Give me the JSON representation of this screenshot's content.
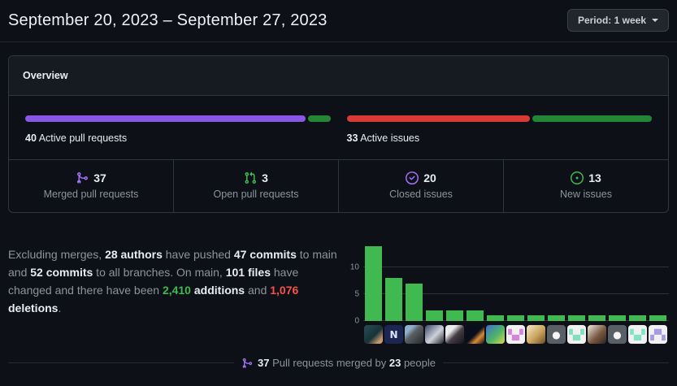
{
  "page": {
    "title": "September 20, 2023 – September 27, 2023",
    "period_button_label": "Period: 1 week"
  },
  "colors": {
    "background": "#0d1117",
    "card_border": "#30363d",
    "merged_purple": "#8957e5",
    "progress_green": "#238636",
    "closed_red": "#d93a35",
    "icon_purple": "#a371f7",
    "icon_green": "#3fb950",
    "additions_green": "#3fb950",
    "deletions_red": "#f85149",
    "chart_bar_green": "#3fb950"
  },
  "overview": {
    "tab_label": "Overview",
    "pull_requests": {
      "label_count": "40",
      "label_text": " Active pull requests",
      "merged_pct": 92.5,
      "open_pct": 7.5,
      "merged_color": "#8957e5",
      "open_color": "#238636"
    },
    "issues": {
      "label_count": "33",
      "label_text": " Active issues",
      "closed_pct": 60.5,
      "new_pct": 39.5,
      "closed_color": "#d93a35",
      "new_color": "#238636"
    },
    "stats": [
      {
        "icon": "git-merge-icon",
        "value": "37",
        "label": "Merged pull requests"
      },
      {
        "icon": "git-pull-request-icon",
        "value": "3",
        "label": "Open pull requests"
      },
      {
        "icon": "issue-closed-icon",
        "value": "20",
        "label": "Closed issues"
      },
      {
        "icon": "issue-opened-icon",
        "value": "13",
        "label": "New issues"
      }
    ]
  },
  "summary": {
    "segments": [
      {
        "text": "Excluding merges, ",
        "style": "normal"
      },
      {
        "text": "28 authors",
        "style": "bold"
      },
      {
        "text": " have pushed ",
        "style": "normal"
      },
      {
        "text": "47 commits",
        "style": "bold"
      },
      {
        "text": " to main and ",
        "style": "normal"
      },
      {
        "text": "52 commits",
        "style": "bold"
      },
      {
        "text": " to all branches. On main, ",
        "style": "normal"
      },
      {
        "text": "101 files",
        "style": "bold"
      },
      {
        "text": " have changed and there have been ",
        "style": "normal"
      },
      {
        "text": "2,410",
        "style": "green"
      },
      {
        "text": " additions",
        "style": "bold"
      },
      {
        "text": " and ",
        "style": "normal"
      },
      {
        "text": "1,076",
        "style": "red"
      },
      {
        "text": " deletions",
        "style": "bold"
      },
      {
        "text": ".",
        "style": "normal"
      }
    ]
  },
  "chart_data": {
    "type": "bar",
    "title": "Commits per contributor (top 15, one bar per avatar)",
    "values": [
      14,
      8,
      7,
      2,
      2,
      2,
      1,
      1,
      1,
      1,
      1,
      1,
      1,
      1,
      1
    ],
    "yticks": [
      0,
      5,
      10
    ],
    "ylim": [
      0,
      15
    ],
    "bar_color": "#3fb950",
    "grid": true,
    "xlabel": "",
    "ylabel": ""
  },
  "avatars": [
    {
      "kind": "photo",
      "bg": "linear-gradient(135deg,#2b4d52,#16323a 55%,#c99a6e 85%)",
      "fg": "",
      "glyph": ""
    },
    {
      "kind": "letter",
      "bg": "#1d2553",
      "fg": "#dbe3ff",
      "glyph": "N"
    },
    {
      "kind": "photo",
      "bg": "linear-gradient(135deg,#8fb0cc 25%,#5a5f63 45%,#26282b)",
      "fg": "",
      "glyph": ""
    },
    {
      "kind": "photo",
      "bg": "linear-gradient(135deg,#3a4a66,#cfd0da 55%,#23242b)",
      "fg": "",
      "glyph": ""
    },
    {
      "kind": "photo",
      "bg": "linear-gradient(135deg,#ececec 30%,#453c46 55%,#191419)",
      "fg": "",
      "glyph": ""
    },
    {
      "kind": "photo",
      "bg": "linear-gradient(135deg,#0a0e1c 50%,#d98a33 70%,#121420)",
      "fg": "",
      "glyph": ""
    },
    {
      "kind": "photo",
      "bg": "linear-gradient(135deg,#3e6ed0,#4db56a 55%,#ded84a)",
      "fg": "",
      "glyph": ""
    },
    {
      "kind": "identicon",
      "bg": "#f1f1f1",
      "fg": "#d583dd",
      "glyph": "▚▞"
    },
    {
      "kind": "photo",
      "bg": "linear-gradient(135deg,#f4e9cf,#caa45c 55%,#6e4d22)",
      "fg": "",
      "glyph": ""
    },
    {
      "kind": "octocat",
      "bg": "#585f66",
      "fg": "#f4f4f4",
      "glyph": "●"
    },
    {
      "kind": "identicon",
      "bg": "#f1f1f1",
      "fg": "#7fe0bd",
      "glyph": "▚▞"
    },
    {
      "kind": "photo",
      "bg": "linear-gradient(135deg,#efece6,#7a5a43 55%,#2c241e)",
      "fg": "",
      "glyph": ""
    },
    {
      "kind": "octocat",
      "bg": "#585f66",
      "fg": "#f4f4f4",
      "glyph": "●"
    },
    {
      "kind": "identicon",
      "bg": "#f1f1f1",
      "fg": "#80e4c2",
      "glyph": "▚▞"
    },
    {
      "kind": "identicon",
      "bg": "#f1f1f1",
      "fg": "#a79ae2",
      "glyph": "▞▚"
    }
  ],
  "footer": {
    "segments": [
      {
        "text": "37",
        "style": "bold"
      },
      {
        "text": " Pull requests merged by ",
        "style": "normal"
      },
      {
        "text": "23",
        "style": "bold"
      },
      {
        "text": " people",
        "style": "normal"
      }
    ]
  }
}
